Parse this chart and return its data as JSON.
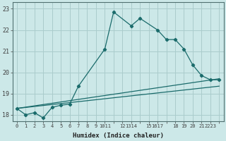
{
  "bg_color": "#cce8e8",
  "grid_color": "#aacccc",
  "line_color": "#1a6b6b",
  "xlim": [
    -0.5,
    23.5
  ],
  "ylim": [
    17.7,
    23.3
  ],
  "yticks": [
    18,
    19,
    20,
    21,
    22,
    23
  ],
  "xlabel": "Humidex (Indice chaleur)",
  "main_x": [
    0,
    1,
    2,
    3,
    4,
    5,
    6,
    7,
    10,
    11,
    13,
    14,
    16,
    17,
    18,
    19,
    20,
    21,
    22,
    23
  ],
  "main_y": [
    18.3,
    18.0,
    18.1,
    17.85,
    18.35,
    18.45,
    18.5,
    19.35,
    21.1,
    22.85,
    22.2,
    22.55,
    22.0,
    21.55,
    21.55,
    21.1,
    20.35,
    19.85,
    19.65,
    19.65
  ],
  "line2_x": [
    0,
    23
  ],
  "line2_y": [
    18.3,
    19.7
  ],
  "line3_x": [
    0,
    23
  ],
  "line3_y": [
    18.3,
    19.35
  ]
}
